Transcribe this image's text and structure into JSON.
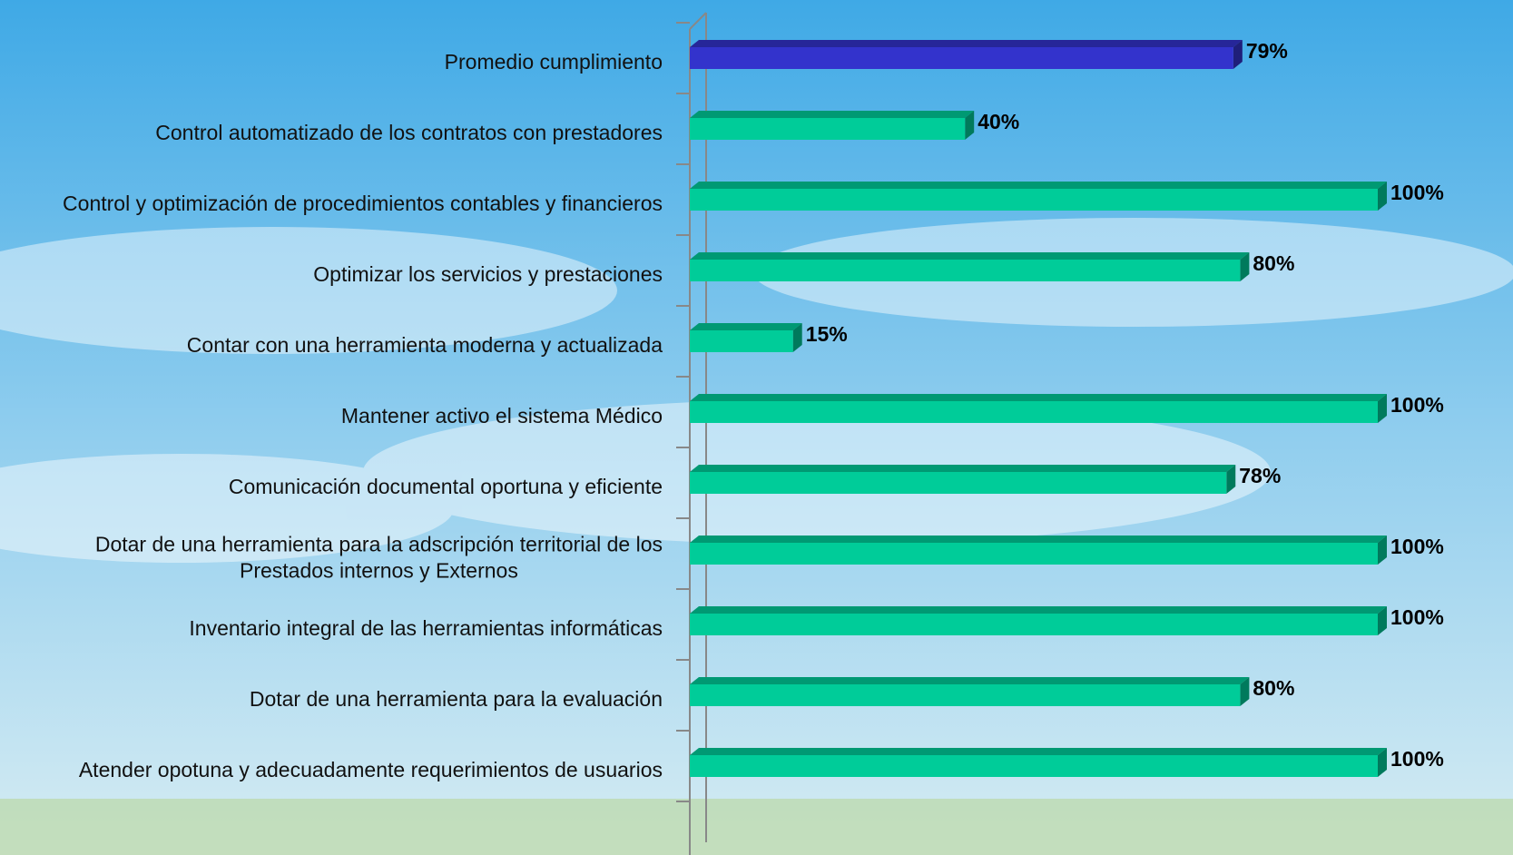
{
  "chart_data": {
    "type": "bar",
    "orientation": "horizontal",
    "categories": [
      "Promedio  cumplimiento",
      "Control automatizado de los contratos con prestadores",
      "Control y optimización de procedimientos contables y financieros",
      "Optimizar los servicios y prestaciones",
      "Contar con una herramienta moderna y actualizada ",
      "Mantener activo el sistema Médico",
      "Comunicación documental oportuna y eficiente",
      "Dotar de una herramienta para la adscripción territorial de los\nPrestados internos y Externos",
      "Inventario integral de las herramientas informáticas",
      "Dotar de una herramienta para la evaluación",
      "Atender opotuna y adecuadamente requerimientos de usuarios"
    ],
    "values": [
      79,
      40,
      100,
      80,
      15,
      100,
      78,
      100,
      100,
      80,
      100
    ],
    "value_labels": [
      "79%",
      "40%",
      "100%",
      "80%",
      "15%",
      "100%",
      "78%",
      "100%",
      "100%",
      "80%",
      "100%"
    ],
    "colors": [
      "#3333cc",
      "#00cc99",
      "#00cc99",
      "#00cc99",
      "#00cc99",
      "#00cc99",
      "#00cc99",
      "#00cc99",
      "#00cc99",
      "#00cc99",
      "#00cc99"
    ],
    "xlim": [
      0,
      100
    ]
  }
}
